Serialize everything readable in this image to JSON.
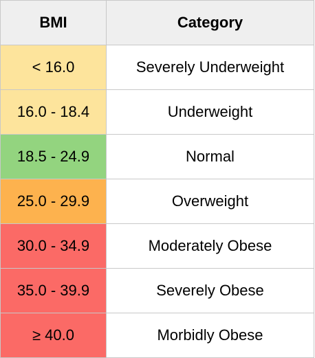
{
  "table": {
    "headers": {
      "bmi": "BMI",
      "category": "Category"
    },
    "rows": [
      {
        "bmi": "< 16.0",
        "category": "Severely Underweight",
        "color": "#fde49c"
      },
      {
        "bmi": "16.0 - 18.4",
        "category": "Underweight",
        "color": "#fde49c"
      },
      {
        "bmi": "18.5 - 24.9",
        "category": "Normal",
        "color": "#93d47f"
      },
      {
        "bmi": "25.0 - 29.9",
        "category": "Overweight",
        "color": "#fdb24e"
      },
      {
        "bmi": "30.0 - 34.9",
        "category": "Moderately Obese",
        "color": "#fb6a66"
      },
      {
        "bmi": "35.0 - 39.9",
        "category": "Severely Obese",
        "color": "#fb6a66"
      },
      {
        "bmi": "≥ 40.0",
        "category": "Morbidly Obese",
        "color": "#fb6a66"
      }
    ]
  }
}
